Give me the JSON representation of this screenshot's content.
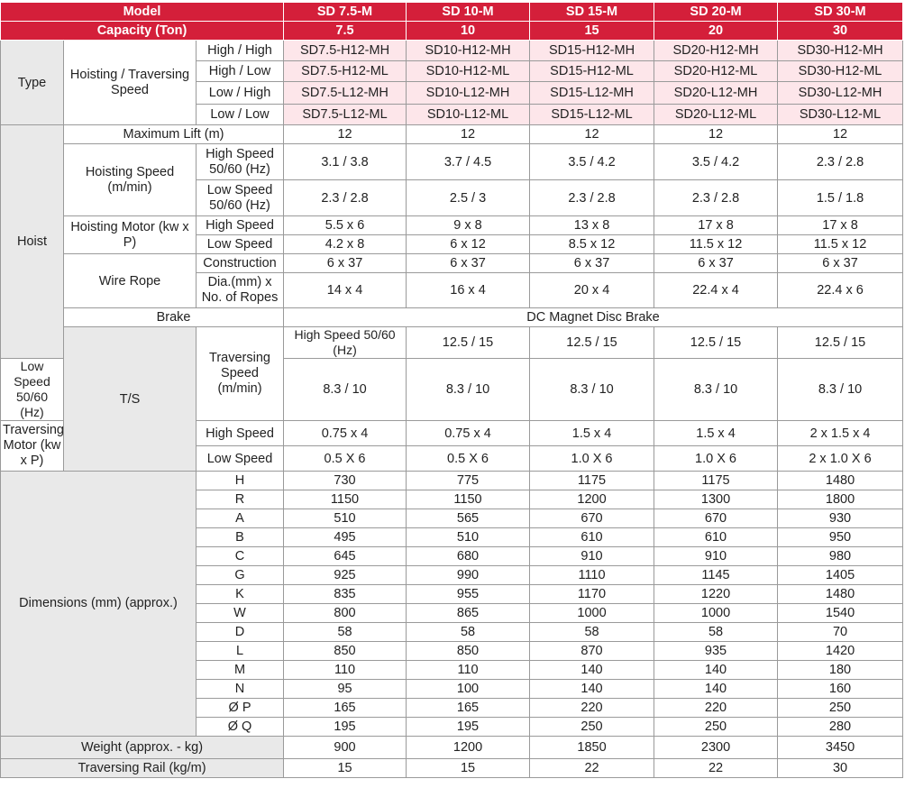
{
  "header": {
    "model_label": "Model",
    "capacity_label": "Capacity (Ton)",
    "models": [
      "SD 7.5-M",
      "SD 10-M",
      "SD 15-M",
      "SD 20-M",
      "SD 30-M"
    ],
    "capacities": [
      "7.5",
      "10",
      "15",
      "20",
      "30"
    ]
  },
  "type": {
    "group": "Type",
    "sub": "Hoisting / Traversing Speed",
    "rows": [
      {
        "label": "High / High",
        "values": [
          "SD7.5-H12-MH",
          "SD10-H12-MH",
          "SD15-H12-MH",
          "SD20-H12-MH",
          "SD30-H12-MH"
        ]
      },
      {
        "label": "High / Low",
        "values": [
          "SD7.5-H12-ML",
          "SD10-H12-ML",
          "SD15-H12-ML",
          "SD20-H12-ML",
          "SD30-H12-ML"
        ]
      },
      {
        "label": "Low / High",
        "values": [
          "SD7.5-L12-MH",
          "SD10-L12-MH",
          "SD15-L12-MH",
          "SD20-L12-MH",
          "SD30-L12-MH"
        ]
      },
      {
        "label": "Low / Low",
        "values": [
          "SD7.5-L12-ML",
          "SD10-L12-ML",
          "SD15-L12-ML",
          "SD20-L12-ML",
          "SD30-L12-ML"
        ]
      }
    ]
  },
  "hoist": {
    "group": "Hoist",
    "max_lift": {
      "label": "Maximum Lift (m)",
      "values": [
        "12",
        "12",
        "12",
        "12",
        "12"
      ]
    },
    "hoisting_speed": {
      "label": "Hoisting Speed (m/min)",
      "rows": [
        {
          "label": "High Speed 50/60 (Hz)",
          "values": [
            "3.1 / 3.8",
            "3.7 / 4.5",
            "3.5 / 4.2",
            "3.5 / 4.2",
            "2.3 / 2.8"
          ]
        },
        {
          "label": "Low Speed 50/60 (Hz)",
          "values": [
            "2.3 / 2.8",
            "2.5 / 3",
            "2.3 / 2.8",
            "2.3 / 2.8",
            "1.5 / 1.8"
          ]
        }
      ]
    },
    "hoisting_motor": {
      "label": "Hoisting Motor (kw x P)",
      "rows": [
        {
          "label": "High Speed",
          "values": [
            "5.5 x 6",
            "9 x 8",
            "13 x 8",
            "17 x 8",
            "17 x 8"
          ]
        },
        {
          "label": "Low Speed",
          "values": [
            "4.2 x 8",
            "6 x 12",
            "8.5 x 12",
            "11.5 x 12",
            "11.5 x 12"
          ]
        }
      ]
    },
    "wire_rope": {
      "label": "Wire Rope",
      "rows": [
        {
          "label": "Construction",
          "values": [
            "6 x 37",
            "6 x 37",
            "6 x 37",
            "6 x 37",
            "6 x 37"
          ]
        },
        {
          "label": "Dia.(mm) x No. of Ropes",
          "values": [
            "14 x 4",
            "16 x 4",
            "20 x 4",
            "22.4 x 4",
            "22.4 x 6"
          ]
        }
      ]
    },
    "brake": {
      "label": "Brake",
      "value": "DC Magnet Disc Brake"
    }
  },
  "ts": {
    "group": "T/S",
    "traversing_speed": {
      "label": "Traversing Speed (m/min)",
      "rows": [
        {
          "label": "High Speed 50/60 (Hz)",
          "values": [
            "12.5 / 15",
            "12.5 / 15",
            "12.5 / 15",
            "12.5 / 15",
            "12.5 / 15"
          ]
        },
        {
          "label": "Low Speed 50/60 (Hz)",
          "values": [
            "8.3 / 10",
            "8.3 / 10",
            "8.3 / 10",
            "8.3 / 10",
            "8.3 / 10"
          ]
        }
      ]
    },
    "traversing_motor": {
      "label": "Traversing Motor (kw x P)",
      "rows": [
        {
          "label": "High Speed",
          "values": [
            "0.75 x 4",
            "0.75 x 4",
            "1.5 x 4",
            "1.5 x 4",
            "2 x 1.5 x 4"
          ]
        },
        {
          "label": "Low Speed",
          "values": [
            "0.5 X 6",
            "0.5 X 6",
            "1.0 X 6",
            "1.0 X 6",
            "2 x 1.0 X 6"
          ]
        }
      ]
    }
  },
  "dimensions": {
    "label": "Dimensions (mm) (approx.)",
    "rows": [
      {
        "label": "H",
        "values": [
          "730",
          "775",
          "1175",
          "1175",
          "1480"
        ]
      },
      {
        "label": "R",
        "values": [
          "1150",
          "1150",
          "1200",
          "1300",
          "1800"
        ]
      },
      {
        "label": "A",
        "values": [
          "510",
          "565",
          "670",
          "670",
          "930"
        ]
      },
      {
        "label": "B",
        "values": [
          "495",
          "510",
          "610",
          "610",
          "950"
        ]
      },
      {
        "label": "C",
        "values": [
          "645",
          "680",
          "910",
          "910",
          "980"
        ]
      },
      {
        "label": "G",
        "values": [
          "925",
          "990",
          "1110",
          "1145",
          "1405"
        ]
      },
      {
        "label": "K",
        "values": [
          "835",
          "955",
          "1170",
          "1220",
          "1480"
        ]
      },
      {
        "label": "W",
        "values": [
          "800",
          "865",
          "1000",
          "1000",
          "1540"
        ]
      },
      {
        "label": "D",
        "values": [
          "58",
          "58",
          "58",
          "58",
          "70"
        ]
      },
      {
        "label": "L",
        "values": [
          "850",
          "850",
          "870",
          "935",
          "1420"
        ]
      },
      {
        "label": "M",
        "values": [
          "110",
          "110",
          "140",
          "140",
          "180"
        ]
      },
      {
        "label": "N",
        "values": [
          "95",
          "100",
          "140",
          "140",
          "160"
        ]
      },
      {
        "label": "Ø P",
        "values": [
          "165",
          "165",
          "220",
          "220",
          "250"
        ]
      },
      {
        "label": "Ø Q",
        "values": [
          "195",
          "195",
          "250",
          "250",
          "280"
        ]
      }
    ]
  },
  "weight": {
    "label": "Weight (approx. - kg)",
    "values": [
      "900",
      "1200",
      "1850",
      "2300",
      "3450"
    ]
  },
  "rail": {
    "label": "Traversing Rail (kg/m)",
    "values": [
      "15",
      "15",
      "22",
      "22",
      "30"
    ]
  }
}
